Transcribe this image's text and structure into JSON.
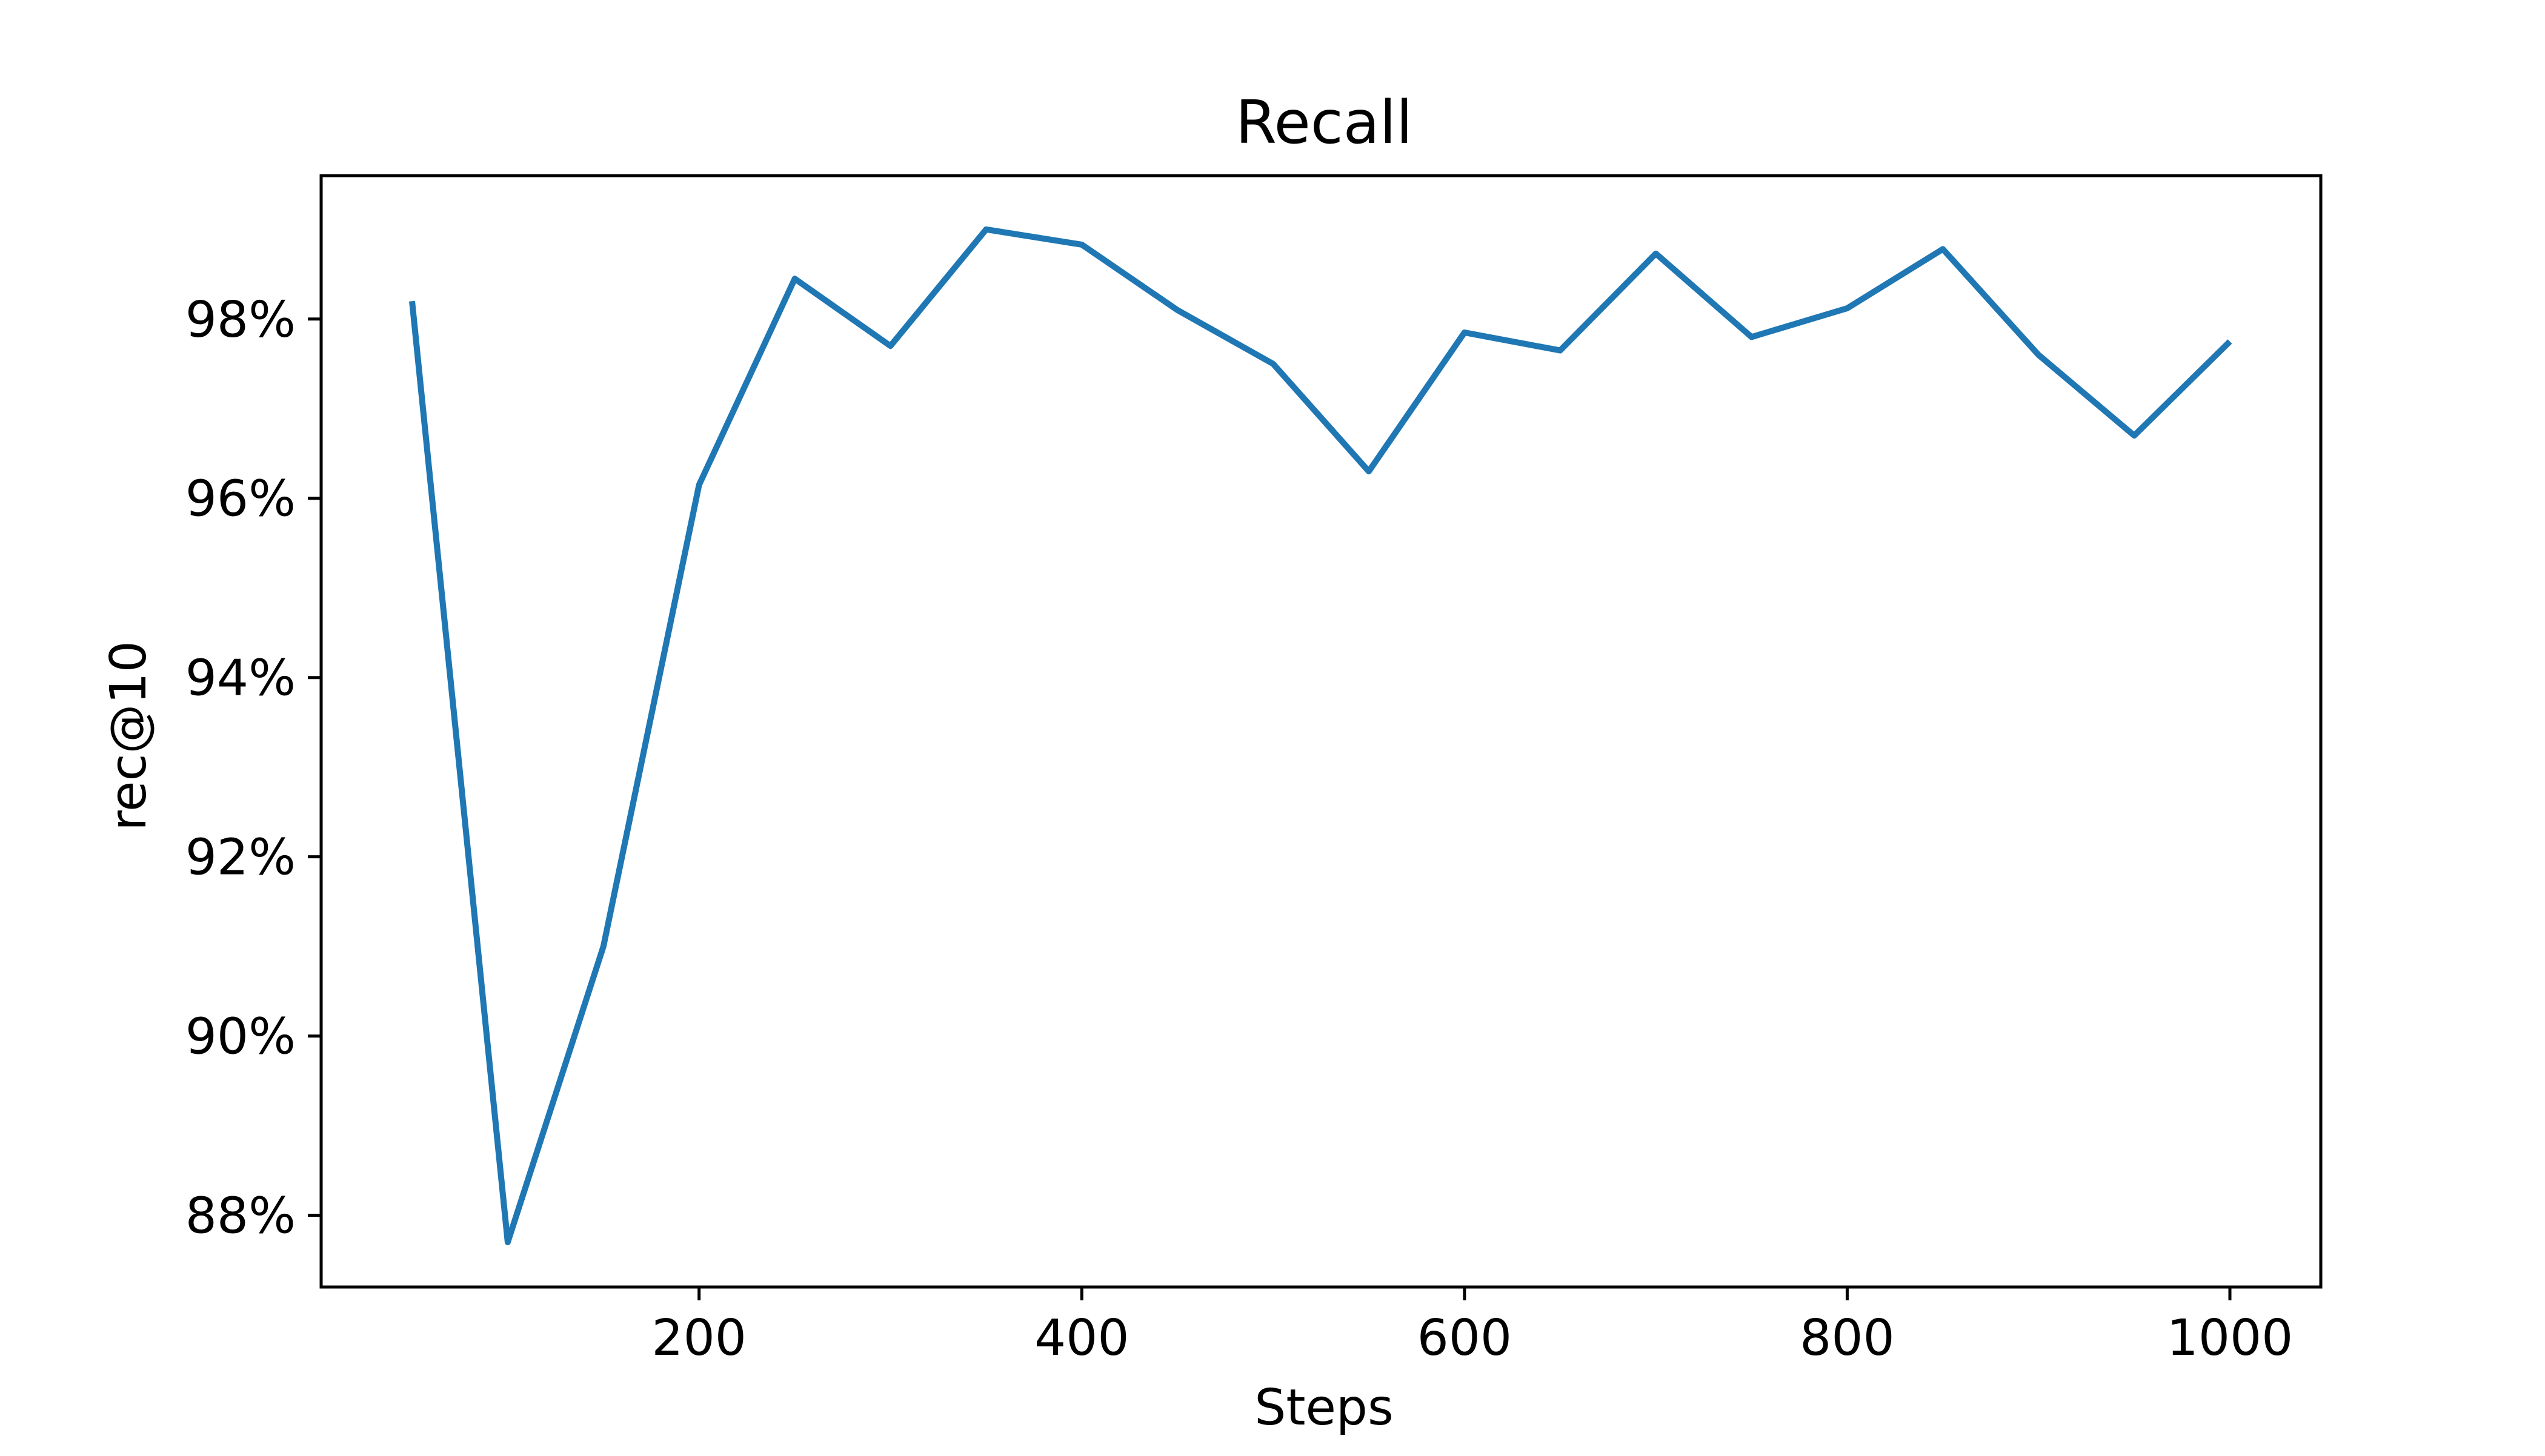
{
  "chart_data": {
    "type": "line",
    "title": "Recall",
    "xlabel": "Steps",
    "ylabel": "rec@10",
    "xlim": [
      2.5,
      1047.5
    ],
    "ylim": [
      87.2,
      99.6
    ],
    "xticks": [
      200,
      400,
      600,
      800,
      1000
    ],
    "xtick_labels": [
      "200",
      "400",
      "600",
      "800",
      "1000"
    ],
    "yticks": [
      88,
      90,
      92,
      94,
      96,
      98
    ],
    "ytick_labels": [
      "88%",
      "90%",
      "92%",
      "94%",
      "96%",
      "98%"
    ],
    "grid": false,
    "legend": "none",
    "series": [
      {
        "color": "#1f77b4",
        "x": [
          50,
          100,
          150,
          200,
          250,
          300,
          350,
          400,
          450,
          500,
          550,
          600,
          650,
          700,
          750,
          800,
          850,
          900,
          950,
          1000
        ],
        "y": [
          98.2,
          87.7,
          91.0,
          96.15,
          98.45,
          97.7,
          99.0,
          98.83,
          98.1,
          97.5,
          96.3,
          97.85,
          97.65,
          98.73,
          97.8,
          98.12,
          98.78,
          97.6,
          96.7,
          97.75
        ]
      }
    ]
  }
}
